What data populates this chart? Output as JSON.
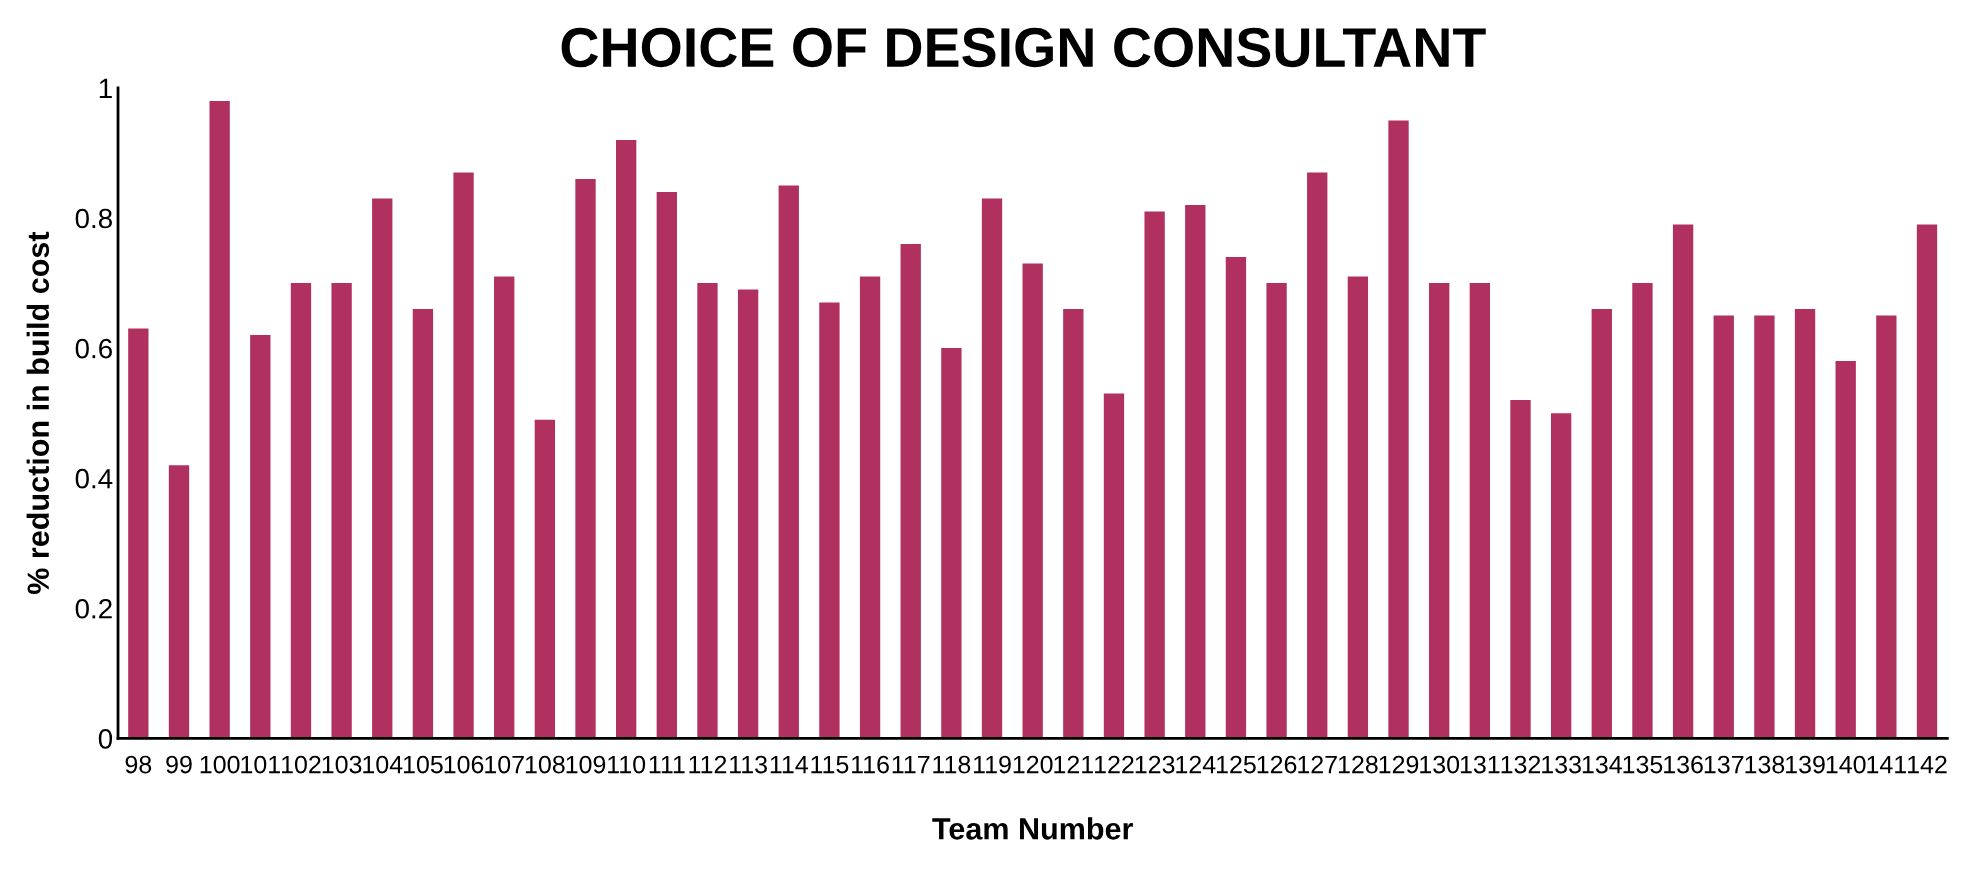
{
  "chart_data": {
    "type": "bar",
    "title": "CHOICE OF DESIGN CONSULTANT",
    "xlabel": "Team Number",
    "ylabel": "% reduction in build cost",
    "categories": [
      "98",
      "99",
      "100",
      "101",
      "102",
      "103",
      "104",
      "105",
      "106",
      "107",
      "108",
      "109",
      "110",
      "111",
      "112",
      "113",
      "114",
      "115",
      "116",
      "117",
      "118",
      "119",
      "120",
      "121",
      "122",
      "123",
      "124",
      "125",
      "126",
      "127",
      "128",
      "129",
      "130",
      "131",
      "132",
      "133",
      "134",
      "135",
      "136",
      "137",
      "138",
      "139",
      "140",
      "141",
      "142"
    ],
    "values": [
      0.63,
      0.42,
      0.98,
      0.62,
      0.7,
      0.7,
      0.83,
      0.66,
      0.87,
      0.71,
      0.49,
      0.86,
      0.92,
      0.84,
      0.7,
      0.69,
      0.85,
      0.67,
      0.71,
      0.76,
      0.6,
      0.83,
      0.73,
      0.66,
      0.53,
      0.81,
      0.82,
      0.74,
      0.7,
      0.87,
      0.71,
      0.95,
      0.7,
      0.7,
      0.52,
      0.5,
      0.66,
      0.7,
      0.79,
      0.65,
      0.65,
      0.66,
      0.58,
      0.65,
      0.79
    ],
    "color": "#b03060",
    "ylim": [
      0,
      1
    ],
    "yticks": [
      0,
      0.2,
      0.4,
      0.6,
      0.8,
      1
    ],
    "grid": false,
    "legend": false
  }
}
